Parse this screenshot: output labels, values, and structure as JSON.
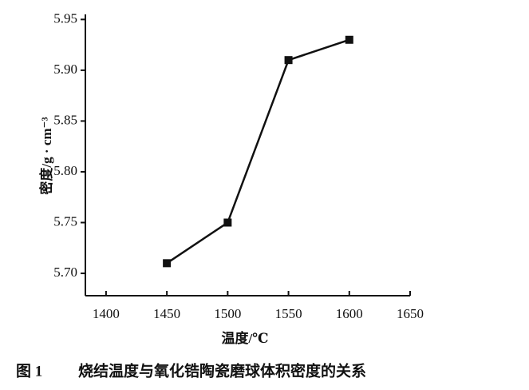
{
  "chart_data": {
    "type": "line",
    "x_label": "温度/℃",
    "y_label": "密度/g · cm⁻³",
    "caption_label": "图 1",
    "caption": "烧结温度与氧化锆陶瓷磨球体积密度的关系",
    "x": [
      1450,
      1500,
      1550,
      1600
    ],
    "series": [
      {
        "color": "#111111",
        "values": [
          5.71,
          5.75,
          5.91,
          5.93
        ]
      }
    ],
    "xlim": [
      1383,
      1650
    ],
    "xticks": [
      1400,
      1450,
      1500,
      1550,
      1600,
      1650
    ],
    "ylim": [
      5.678,
      5.955
    ],
    "yticks": [
      {
        "value": 5.7,
        "label": "5.70"
      },
      {
        "value": 5.75,
        "label": "5.75"
      },
      {
        "value": 5.8,
        "label": "5.80"
      },
      {
        "value": 5.85,
        "label": "5.85"
      },
      {
        "value": 5.9,
        "label": "5.90"
      },
      {
        "value": 5.95,
        "label": "5.95"
      }
    ]
  }
}
